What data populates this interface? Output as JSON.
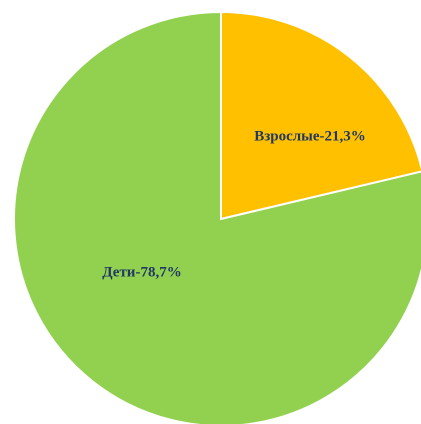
{
  "chart_data": {
    "type": "pie",
    "title": "",
    "start_angle": "12 o'clock",
    "direction": "clockwise",
    "slices": [
      {
        "label": "Взрослые-21,3%",
        "category": "Взрослые",
        "value": 21.3,
        "color": "#FFC000"
      },
      {
        "label": "Дети-78,7%",
        "category": "Дети",
        "value": 78.7,
        "color": "#92D050"
      }
    ],
    "slice_border_color": "#FFFFFF",
    "label_color": "#1F3864",
    "legend": "none"
  }
}
